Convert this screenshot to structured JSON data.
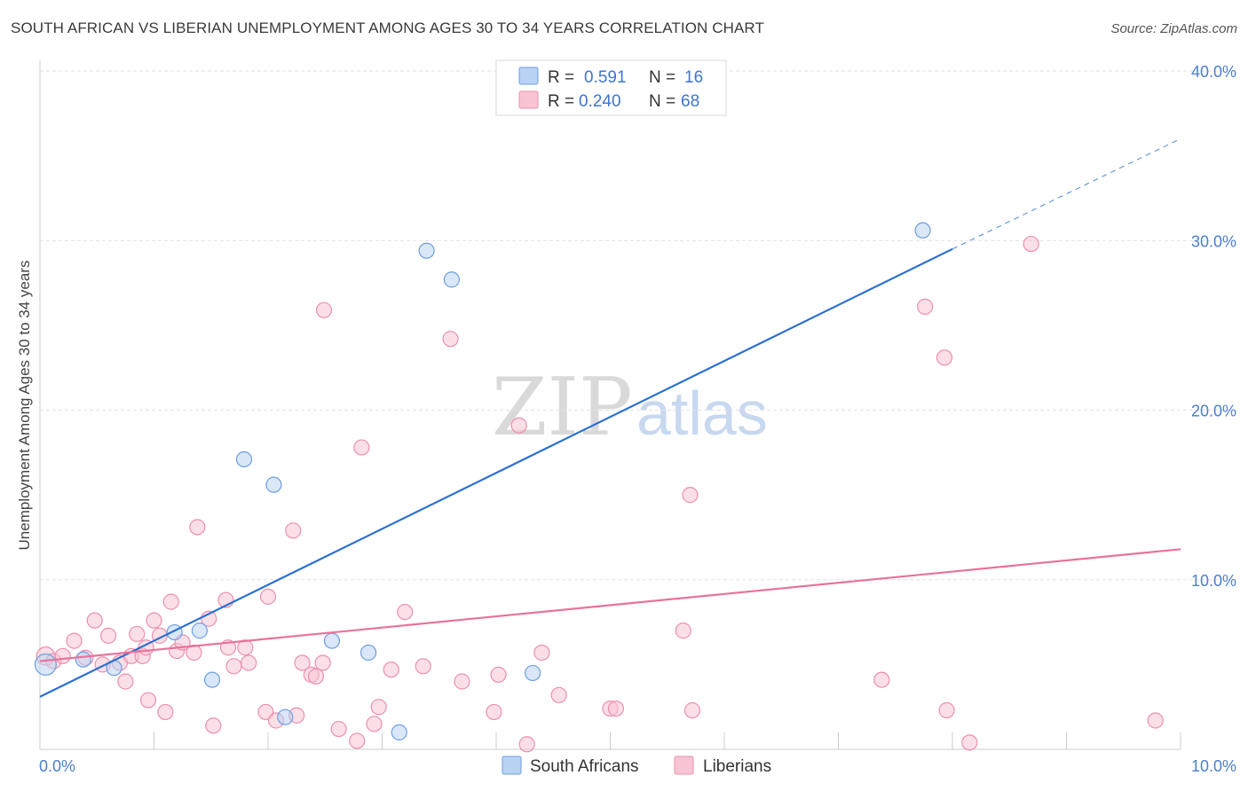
{
  "chart_data": {
    "type": "scatter",
    "title": "SOUTH AFRICAN VS LIBERIAN UNEMPLOYMENT AMONG AGES 30 TO 34 YEARS CORRELATION CHART",
    "source": "Source: ZipAtlas.com",
    "xlabel": "",
    "ylabel": "Unemployment Among Ages 30 to 34 years",
    "xlim": [
      0,
      10
    ],
    "ylim": [
      0,
      40
    ],
    "x_tick_labels": [
      "0.0%",
      "10.0%"
    ],
    "y_ticks": [
      10,
      20,
      30,
      40
    ],
    "y_tick_labels": [
      "10.0%",
      "20.0%",
      "30.0%",
      "40.0%"
    ],
    "watermark": {
      "zip": "ZIP",
      "atlas": "atlas"
    },
    "legend": {
      "r_label": "R =",
      "n_label": "N =",
      "rows": [
        {
          "name": "South Africans",
          "r": "0.591",
          "n": "16"
        },
        {
          "name": "Liberians",
          "r": "0.240",
          "n": "68"
        }
      ]
    },
    "colors": {
      "south_africans_fill": "#b9d3f3",
      "south_africans_stroke": "#6f9ee0",
      "south_africans_line": "#2a6fd1",
      "liberians_fill": "#f8c4d3",
      "liberians_stroke": "#ec8fae",
      "liberians_line": "#e8729b",
      "axis_tick_text": "#4a7fd0"
    },
    "series": [
      {
        "name": "South Africans",
        "points": [
          [
            0.05,
            5.0,
            1.4
          ],
          [
            0.38,
            5.3,
            1
          ],
          [
            0.65,
            4.8,
            1
          ],
          [
            1.18,
            6.9,
            1
          ],
          [
            1.4,
            7.0,
            1
          ],
          [
            1.51,
            4.1,
            1
          ],
          [
            1.79,
            17.1,
            1
          ],
          [
            2.05,
            15.6,
            1
          ],
          [
            2.56,
            6.4,
            1
          ],
          [
            2.88,
            5.7,
            1
          ],
          [
            3.15,
            1.0,
            1
          ],
          [
            3.39,
            29.4,
            1
          ],
          [
            3.61,
            27.7,
            1
          ],
          [
            4.32,
            4.5,
            1
          ],
          [
            2.15,
            1.9,
            1
          ],
          [
            7.74,
            30.6,
            1
          ]
        ],
        "trend": {
          "x1": 0.0,
          "y1": 3.1,
          "x2": 8.0,
          "y2": 29.5,
          "dash_x2": 10.0,
          "dash_y2": 36.0
        }
      },
      {
        "name": "Liberians",
        "points": [
          [
            0.05,
            5.5,
            1.2
          ],
          [
            0.12,
            5.2,
            1
          ],
          [
            0.2,
            5.5,
            1
          ],
          [
            0.3,
            6.4,
            1
          ],
          [
            0.4,
            5.4,
            1
          ],
          [
            0.48,
            7.6,
            1
          ],
          [
            0.55,
            5.0,
            1
          ],
          [
            0.6,
            6.7,
            1
          ],
          [
            0.7,
            5.1,
            1
          ],
          [
            0.75,
            4.0,
            1
          ],
          [
            0.8,
            5.5,
            1
          ],
          [
            0.85,
            6.8,
            1
          ],
          [
            0.9,
            5.5,
            1
          ],
          [
            0.95,
            2.9,
            1
          ],
          [
            1.0,
            7.6,
            1
          ],
          [
            1.05,
            6.7,
            1
          ],
          [
            1.1,
            2.2,
            1
          ],
          [
            1.15,
            8.7,
            1
          ],
          [
            1.2,
            5.8,
            1
          ],
          [
            1.25,
            6.3,
            1
          ],
          [
            1.35,
            5.7,
            1
          ],
          [
            1.38,
            13.1,
            1
          ],
          [
            1.48,
            7.7,
            1
          ],
          [
            1.52,
            1.4,
            1
          ],
          [
            1.63,
            8.8,
            1
          ],
          [
            1.7,
            4.9,
            1
          ],
          [
            1.8,
            6.0,
            1
          ],
          [
            1.83,
            5.1,
            1
          ],
          [
            1.98,
            2.2,
            1
          ],
          [
            2.0,
            9.0,
            1
          ],
          [
            2.07,
            1.7,
            1
          ],
          [
            2.22,
            12.9,
            1
          ],
          [
            2.25,
            2.0,
            1
          ],
          [
            2.3,
            5.1,
            1
          ],
          [
            2.38,
            4.4,
            1
          ],
          [
            2.42,
            4.3,
            1
          ],
          [
            2.49,
            25.9,
            1
          ],
          [
            2.62,
            1.2,
            1
          ],
          [
            2.78,
            0.5,
            1
          ],
          [
            2.82,
            17.8,
            1
          ],
          [
            2.93,
            1.5,
            1
          ],
          [
            2.97,
            2.5,
            1
          ],
          [
            3.08,
            4.7,
            1
          ],
          [
            3.2,
            8.1,
            1
          ],
          [
            3.36,
            4.9,
            1
          ],
          [
            3.6,
            24.2,
            1
          ],
          [
            3.7,
            4.0,
            1
          ],
          [
            3.98,
            2.2,
            1
          ],
          [
            4.02,
            4.4,
            1
          ],
          [
            4.2,
            19.1,
            1
          ],
          [
            4.27,
            0.3,
            1
          ],
          [
            4.4,
            5.7,
            1
          ],
          [
            4.55,
            3.2,
            1
          ],
          [
            5.0,
            2.4,
            1
          ],
          [
            5.05,
            2.4,
            1
          ],
          [
            5.64,
            7.0,
            1
          ],
          [
            5.7,
            15.0,
            1
          ],
          [
            5.72,
            2.3,
            1
          ],
          [
            7.38,
            4.1,
            1
          ],
          [
            7.76,
            26.1,
            1
          ],
          [
            7.93,
            23.1,
            1
          ],
          [
            7.95,
            2.3,
            1
          ],
          [
            8.15,
            0.4,
            1
          ],
          [
            8.69,
            29.8,
            1
          ],
          [
            9.78,
            1.7,
            1
          ],
          [
            2.48,
            5.1,
            1
          ],
          [
            1.65,
            6.0,
            1
          ],
          [
            0.93,
            6.0,
            1
          ]
        ],
        "trend": {
          "x1": 0.0,
          "y1": 5.2,
          "x2": 10.0,
          "y2": 11.8
        }
      }
    ]
  }
}
